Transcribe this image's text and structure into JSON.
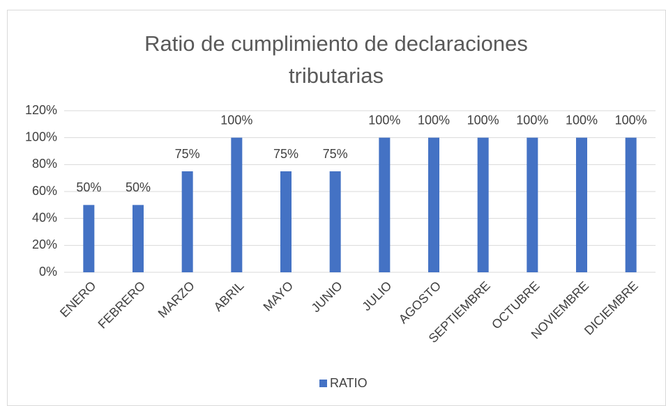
{
  "chart_data": {
    "type": "bar",
    "title": "Ratio de cumplimiento de declaraciones tributarias",
    "categories": [
      "ENERO",
      "FEBRERO",
      "MARZO",
      "ABRIL",
      "MAYO",
      "JUNIO",
      "JULIO",
      "AGOSTO",
      "SEPTIEMBRE",
      "OCTUBRE",
      "NOVIEMBRE",
      "DICIEMBRE"
    ],
    "series": [
      {
        "name": "RATIO",
        "color": "#4472c4",
        "values": [
          50,
          50,
          75,
          100,
          75,
          75,
          100,
          100,
          100,
          100,
          100,
          100
        ],
        "value_labels": [
          "50%",
          "50%",
          "75%",
          "100%",
          "75%",
          "75%",
          "100%",
          "100%",
          "100%",
          "100%",
          "100%",
          "100%"
        ]
      }
    ],
    "ylim": [
      0,
      120
    ],
    "yticks": [
      {
        "value": 0,
        "label": "0%"
      },
      {
        "value": 20,
        "label": "20%"
      },
      {
        "value": 40,
        "label": "40%"
      },
      {
        "value": 60,
        "label": "60%"
      },
      {
        "value": 80,
        "label": "80%"
      },
      {
        "value": 100,
        "label": "100%"
      },
      {
        "value": 120,
        "label": "120%"
      }
    ],
    "grid": true,
    "legend": "bottom"
  }
}
